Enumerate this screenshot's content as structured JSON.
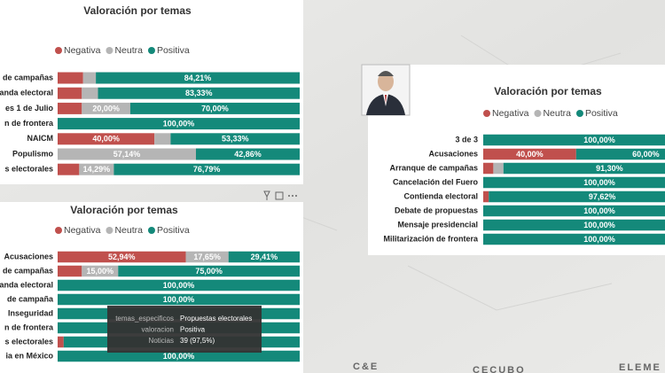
{
  "chart_data": [
    {
      "type": "bar",
      "orientation": "horizontal",
      "stacked": true,
      "title": "Valoración por temas",
      "categories": [
        "de campañas",
        "anda electoral",
        "es 1 de Julio",
        "n de frontera",
        "NAICM",
        "Populismo",
        "s electorales"
      ],
      "series": [
        {
          "name": "Negativa",
          "color": "#c0504d",
          "values": [
            10.53,
            10,
            10,
            0,
            40,
            0,
            8.92
          ],
          "value_labels": [
            null,
            null,
            null,
            null,
            "40,00%",
            null,
            null
          ]
        },
        {
          "name": "Neutra",
          "color": "#b5b5b5",
          "values": [
            5.26,
            6.67,
            20,
            0,
            6.67,
            57.14,
            14.29
          ],
          "value_labels": [
            null,
            null,
            "20,00%",
            null,
            null,
            "57,14%",
            "14,29%"
          ]
        },
        {
          "name": "Positiva",
          "color": "#14897a",
          "values": [
            84.21,
            83.33,
            70,
            100,
            53.33,
            42.86,
            76.79
          ],
          "value_labels": [
            "84,21%",
            "83,33%",
            "70,00%",
            "100,00%",
            "53,33%",
            "42,86%",
            "76,79%"
          ]
        }
      ],
      "xlim": [
        0,
        100
      ]
    },
    {
      "type": "bar",
      "orientation": "horizontal",
      "stacked": true,
      "title": "Valoración por temas",
      "categories": [
        "Acusaciones",
        "de campañas",
        "anda electoral",
        "de campaña",
        "Inseguridad",
        "n de frontera",
        "s electorales",
        "ia en México"
      ],
      "series": [
        {
          "name": "Negativa",
          "color": "#c0504d",
          "values": [
            52.94,
            10,
            0,
            0,
            0,
            0,
            2.5,
            0
          ],
          "value_labels": [
            "52,94%",
            null,
            null,
            null,
            null,
            null,
            null,
            null
          ]
        },
        {
          "name": "Neutra",
          "color": "#b5b5b5",
          "values": [
            17.65,
            15,
            0,
            0,
            0,
            0,
            0,
            0
          ],
          "value_labels": [
            "17,65%",
            "15,00%",
            null,
            null,
            null,
            null,
            null,
            null
          ]
        },
        {
          "name": "Positiva",
          "color": "#14897a",
          "values": [
            29.41,
            75,
            100,
            100,
            100,
            100,
            97.5,
            100
          ],
          "value_labels": [
            "29,41%",
            "75,00%",
            "100,00%",
            "100,00%",
            null,
            null,
            null,
            "100,00%"
          ]
        }
      ],
      "xlim": [
        0,
        100
      ]
    },
    {
      "type": "bar",
      "orientation": "horizontal",
      "stacked": true,
      "title": "Valoración por temas",
      "categories": [
        "3 de 3",
        "Acusaciones",
        "Arranque de campañas",
        "Cancelación del Fuero",
        "Contienda electoral",
        "Debate de propuestas",
        "Mensaje presidencial",
        "Militarización de frontera"
      ],
      "series": [
        {
          "name": "Negativa",
          "color": "#c0504d",
          "values": [
            0,
            40,
            4.35,
            0,
            2.38,
            0,
            0,
            0
          ],
          "value_labels": [
            null,
            "40,00%",
            null,
            null,
            null,
            null,
            null,
            null
          ]
        },
        {
          "name": "Neutra",
          "color": "#b5b5b5",
          "values": [
            0,
            0,
            4.35,
            0,
            0,
            0,
            0,
            0
          ],
          "value_labels": [
            null,
            null,
            null,
            null,
            null,
            null,
            null,
            null
          ]
        },
        {
          "name": "Positiva",
          "color": "#14897a",
          "values": [
            100,
            60,
            91.3,
            100,
            97.62,
            100,
            100,
            100
          ],
          "value_labels": [
            "100,00%",
            "60,00%",
            "91,30%",
            "100,00%",
            "97,62%",
            "100,00%",
            "100,00%",
            "100,00%"
          ]
        }
      ],
      "xlim": [
        0,
        100
      ]
    }
  ],
  "tooltip": {
    "rows": [
      {
        "key": "temas_especificos",
        "value": "Propuestas electorales"
      },
      {
        "key": "valoracion",
        "value": "Positiva"
      },
      {
        "key": "Noticias",
        "value": "39 (97,5%)"
      }
    ]
  },
  "footer": [
    "C&E",
    "CECUBO",
    "ELEME"
  ]
}
